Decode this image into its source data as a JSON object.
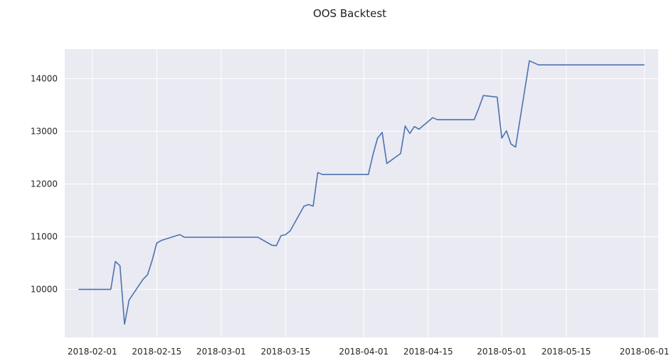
{
  "chart_data": {
    "type": "line",
    "title": "OOS Backtest",
    "xlabel": "",
    "ylabel": "",
    "x_type": "date",
    "xlim": [
      "2018-01-26",
      "2018-06-04"
    ],
    "ylim": [
      9090,
      14560
    ],
    "x_ticks": [
      "2018-02-01",
      "2018-02-15",
      "2018-03-01",
      "2018-03-15",
      "2018-04-01",
      "2018-04-15",
      "2018-05-01",
      "2018-05-15",
      "2018-06-01"
    ],
    "y_ticks": [
      10000,
      11000,
      12000,
      13000,
      14000
    ],
    "grid": true,
    "legend": "none",
    "colors": {
      "line": "#4c72b0",
      "plot_background": "#eaeaf2",
      "grid": "#ffffff"
    },
    "series": [
      {
        "x": [
          "2018-01-29",
          "2018-02-05",
          "2018-02-06",
          "2018-02-07",
          "2018-02-08",
          "2018-02-09",
          "2018-02-12",
          "2018-02-13",
          "2018-02-14",
          "2018-02-15",
          "2018-02-16",
          "2018-02-20",
          "2018-02-21",
          "2018-03-09",
          "2018-03-12",
          "2018-03-13",
          "2018-03-14",
          "2018-03-15",
          "2018-03-16",
          "2018-03-19",
          "2018-03-20",
          "2018-03-21",
          "2018-03-22",
          "2018-03-23",
          "2018-04-02",
          "2018-04-03",
          "2018-04-04",
          "2018-04-05",
          "2018-04-06",
          "2018-04-09",
          "2018-04-10",
          "2018-04-11",
          "2018-04-12",
          "2018-04-13",
          "2018-04-16",
          "2018-04-17",
          "2018-04-25",
          "2018-04-26",
          "2018-04-27",
          "2018-04-30",
          "2018-05-01",
          "2018-05-02",
          "2018-05-03",
          "2018-05-04",
          "2018-05-07",
          "2018-05-08",
          "2018-05-09",
          "2018-06-01"
        ],
        "values": [
          10000,
          10000,
          10530,
          10450,
          9340,
          9800,
          10190,
          10280,
          10550,
          10880,
          10930,
          11040,
          10990,
          10990,
          10840,
          10830,
          11020,
          11040,
          11110,
          11580,
          11610,
          11580,
          12220,
          12180,
          12180,
          12560,
          12870,
          12980,
          12390,
          12580,
          13100,
          12960,
          13090,
          13040,
          13260,
          13220,
          13220,
          13440,
          13680,
          13650,
          12870,
          13010,
          12760,
          12700,
          14340,
          14300,
          14260,
          14260
        ]
      }
    ]
  }
}
